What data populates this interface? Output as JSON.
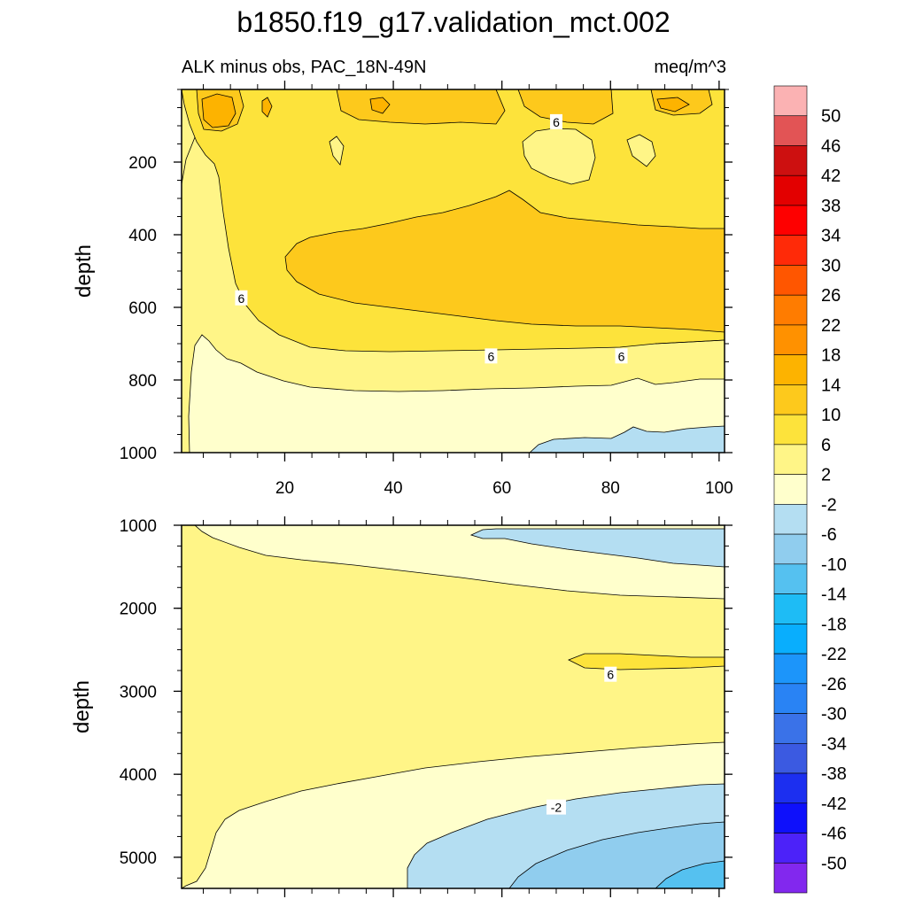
{
  "chart_data": {
    "type": "contour",
    "title": "b1850.f19_g17.validation_mct.002",
    "subtitle_left": "ALK minus obs, PAC_18N-49N",
    "subtitle_right": "meq/m^3",
    "panels": [
      {
        "name": "upper",
        "ylabel": "depth",
        "xlim": [
          1,
          101
        ],
        "ylim": [
          1000,
          0
        ],
        "yticks": [
          200,
          400,
          600,
          800,
          1000
        ],
        "ytick_labels": [
          "200",
          "400",
          "600",
          "800",
          "1000"
        ],
        "xticks": [
          20,
          40,
          60,
          80,
          100
        ],
        "xtick_labels": [
          "20",
          "40",
          "60",
          "80",
          "100"
        ],
        "contour_labels": [
          {
            "text": "6",
            "x": 70,
            "y": 90
          },
          {
            "text": "6",
            "x": 12,
            "y": 575
          },
          {
            "text": "6",
            "x": 58,
            "y": 735
          },
          {
            "text": "6",
            "x": 82,
            "y": 735
          }
        ]
      },
      {
        "name": "lower",
        "ylabel": "depth",
        "xlim": [
          1,
          101
        ],
        "ylim": [
          5375,
          1000
        ],
        "yticks": [
          1000,
          2000,
          3000,
          4000,
          5000
        ],
        "ytick_labels": [
          "1000",
          "2000",
          "3000",
          "4000",
          "5000"
        ],
        "contour_labels": [
          {
            "text": "6",
            "x": 80,
            "y": 2800
          },
          {
            "text": "-2",
            "x": 70,
            "y": 4400
          }
        ]
      }
    ],
    "colorbar": {
      "labels": [
        "50",
        "46",
        "42",
        "38",
        "34",
        "30",
        "26",
        "22",
        "18",
        "14",
        "10",
        "6",
        "2",
        "-2",
        "-6",
        "-10",
        "-14",
        "-18",
        "-22",
        "-26",
        "-30",
        "-34",
        "-38",
        "-42",
        "-46",
        "-50"
      ],
      "colors": [
        "#fbb2b3",
        "#e25455",
        "#cd1010",
        "#e30000",
        "#fe0000",
        "#ff2a08",
        "#ff5600",
        "#ff7c00",
        "#ff9100",
        "#fdb300",
        "#fdc91c",
        "#fde33b",
        "#fff587",
        "#ffffcc",
        "#b4def2",
        "#90cdee",
        "#55c1f0",
        "#1ebcf5",
        "#09aefd",
        "#1c95fa",
        "#2983f4",
        "#3a72e8",
        "#3b5ae1",
        "#1c2ff0",
        "#0e10fb",
        "#4c22f9",
        "#8228ee"
      ]
    }
  }
}
